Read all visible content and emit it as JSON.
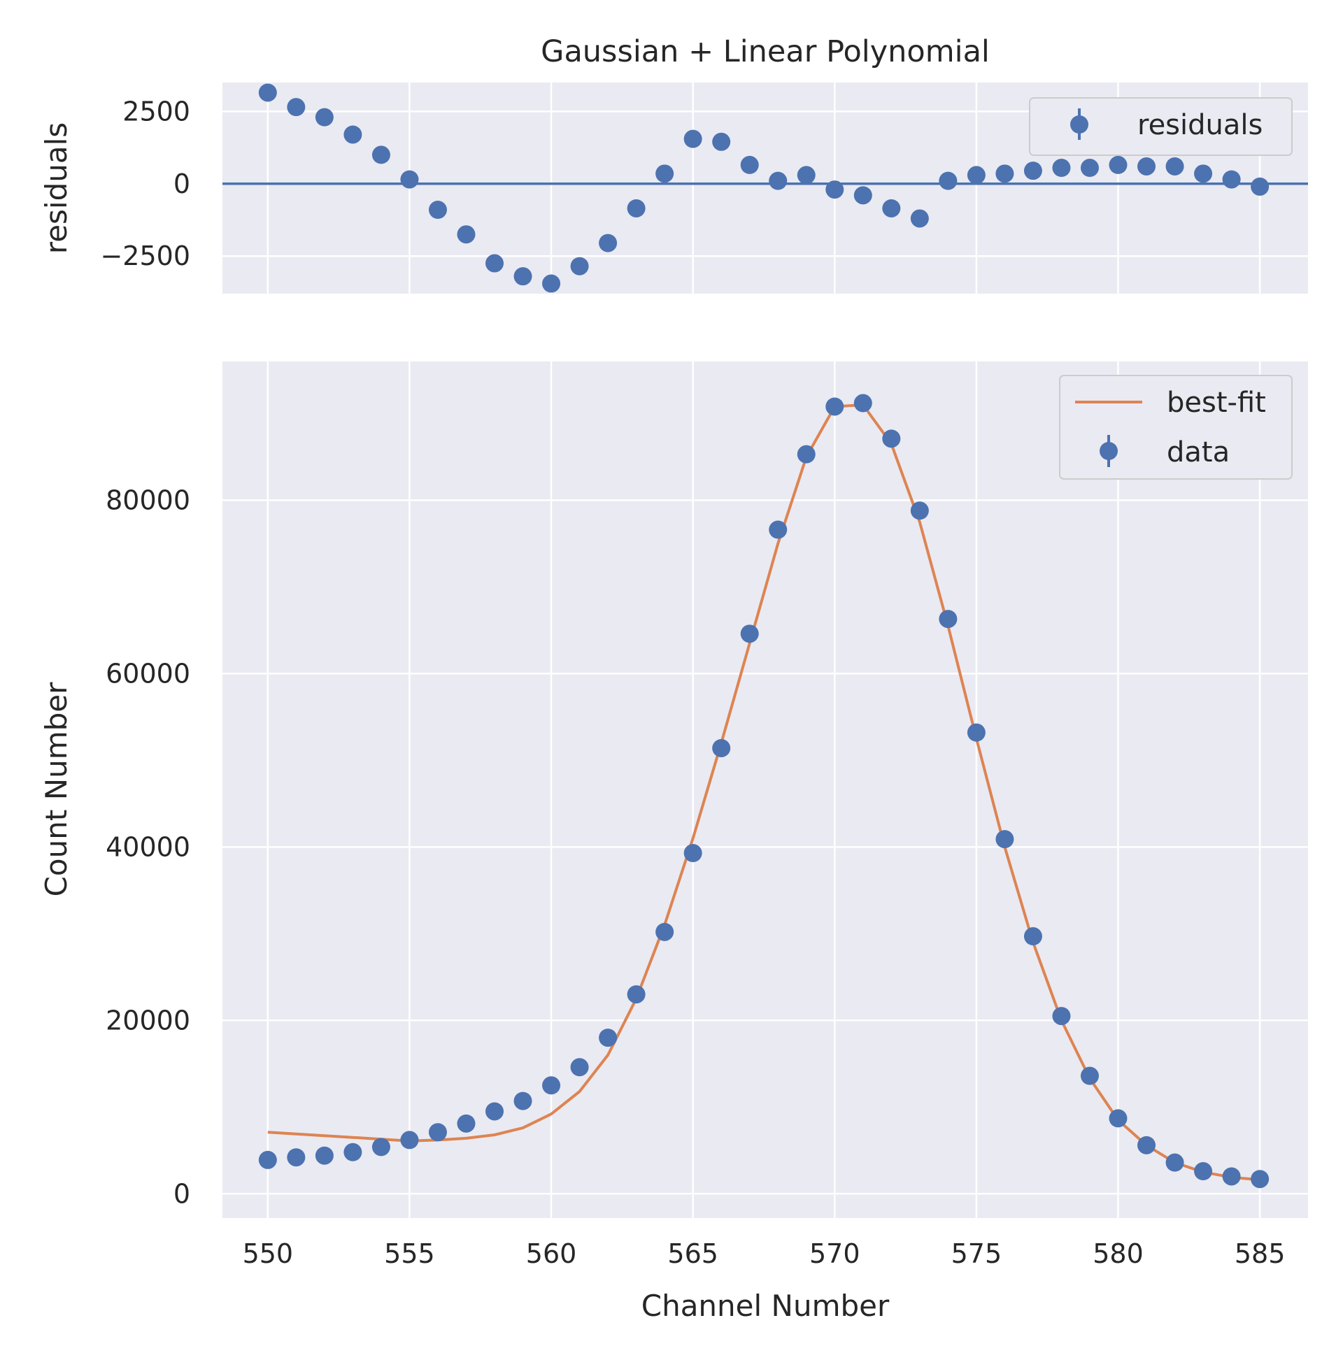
{
  "title": "Gaussian + Linear Polynomial",
  "colors": {
    "data": "#4c72b0",
    "fit": "#dd8452",
    "axes_bg": "#eaeaf2",
    "grid": "#ffffff",
    "text": "#262626"
  },
  "chart_data": [
    {
      "type": "scatter",
      "panel": "residuals",
      "title": "Gaussian + Linear Polynomial",
      "xlabel": "",
      "ylabel": "residuals",
      "xlim": [
        548.4,
        586.7
      ],
      "ylim": [
        -3800,
        3500
      ],
      "xticks": [
        550,
        555,
        560,
        565,
        570,
        575,
        580,
        585
      ],
      "yticks": [
        -2500,
        0,
        2500
      ],
      "ytick_labels": [
        "−2500",
        "0",
        "2500"
      ],
      "grid": true,
      "legend": {
        "position": "upper right",
        "entries": [
          "residuals"
        ]
      },
      "reference_line": 0,
      "series": [
        {
          "name": "residuals",
          "marker": "circle",
          "x": [
            550,
            551,
            552,
            553,
            554,
            555,
            556,
            557,
            558,
            559,
            560,
            561,
            562,
            563,
            564,
            565,
            566,
            567,
            568,
            569,
            570,
            571,
            572,
            573,
            574,
            575,
            576,
            577,
            578,
            579,
            580,
            581,
            582,
            583,
            584,
            585
          ],
          "y": [
            3150,
            2650,
            2300,
            1700,
            1000,
            150,
            -900,
            -1750,
            -2750,
            -3200,
            -3450,
            -2850,
            -2050,
            -850,
            350,
            1550,
            1450,
            650,
            100,
            300,
            -200,
            -400,
            -850,
            -1200,
            100,
            300,
            350,
            450,
            550,
            550,
            650,
            600,
            600,
            350,
            150,
            -100
          ]
        }
      ]
    },
    {
      "type": "line",
      "panel": "main",
      "xlabel": "Channel Number",
      "ylabel": "Count Number",
      "xlim": [
        548.4,
        586.7
      ],
      "ylim": [
        -2800,
        96000
      ],
      "xticks": [
        550,
        555,
        560,
        565,
        570,
        575,
        580,
        585
      ],
      "yticks": [
        0,
        20000,
        40000,
        60000,
        80000
      ],
      "grid": true,
      "legend": {
        "position": "upper right",
        "entries": [
          "best-fit",
          "data"
        ]
      },
      "series": [
        {
          "name": "best-fit",
          "style": "line",
          "x": [
            550,
            551,
            552,
            553,
            554,
            555,
            556,
            557,
            558,
            559,
            560,
            561,
            562,
            563,
            564,
            565,
            566,
            567,
            568,
            569,
            570,
            571,
            572,
            573,
            574,
            575,
            576,
            577,
            578,
            579,
            580,
            581,
            582,
            583,
            584,
            585
          ],
          "y": [
            7100,
            6900,
            6700,
            6500,
            6300,
            6100,
            6200,
            6400,
            6800,
            7600,
            9200,
            11800,
            16000,
            22500,
            31000,
            41000,
            52000,
            63500,
            75000,
            85000,
            90800,
            91000,
            86500,
            77500,
            65500,
            52500,
            40000,
            29000,
            20000,
            13300,
            8500,
            5600,
            3600,
            2500,
            1900,
            1600
          ]
        },
        {
          "name": "data",
          "style": "points",
          "x": [
            550,
            551,
            552,
            553,
            554,
            555,
            556,
            557,
            558,
            559,
            560,
            561,
            562,
            563,
            564,
            565,
            566,
            567,
            568,
            569,
            570,
            571,
            572,
            573,
            574,
            575,
            576,
            577,
            578,
            579,
            580,
            581,
            582,
            583,
            584,
            585
          ],
          "y": [
            3900,
            4200,
            4400,
            4800,
            5400,
            6200,
            7100,
            8100,
            9500,
            10700,
            12500,
            14600,
            18000,
            23000,
            30200,
            39300,
            51400,
            64600,
            76600,
            85300,
            90800,
            91200,
            87100,
            78800,
            66300,
            53200,
            40900,
            29700,
            20500,
            13600,
            8700,
            5600,
            3600,
            2600,
            2000,
            1700
          ]
        }
      ]
    }
  ]
}
